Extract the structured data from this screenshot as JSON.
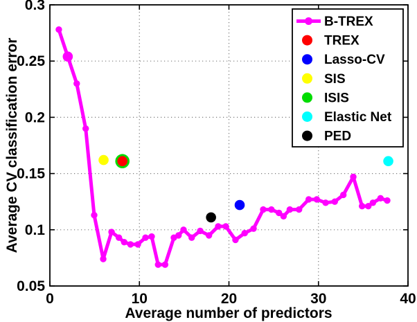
{
  "figure": {
    "background_color": "#FFFFFF",
    "axis_color": "#000000",
    "grid_color": "#7A7A7A"
  },
  "chart_data": {
    "type": "line",
    "title": "",
    "xlabel": "Average number of predictors",
    "ylabel": "Average CV classification error",
    "xlim": [
      0,
      40
    ],
    "ylim": [
      0.05,
      0.3
    ],
    "xticks": [
      0,
      10,
      20,
      30,
      40
    ],
    "xtick_labels": [
      "0",
      "10",
      "20",
      "30",
      "40"
    ],
    "yticks": [
      0.05,
      0.1,
      0.15,
      0.2,
      0.25,
      0.3
    ],
    "ytick_labels": [
      "0.05",
      "0.1",
      "0.15",
      "0.2",
      "0.25",
      "0.3"
    ],
    "grid": true,
    "grid_style": "dotted",
    "legend_position": "upper-right",
    "series": [
      {
        "name": "B-TREX",
        "type": "line-with-markers",
        "color": "#FF00FF",
        "marker": "circle",
        "line_width": 5,
        "marker_radius": 4.7,
        "emphasized_point_index": 1,
        "emphasized_marker_radius": 7.3,
        "x": [
          1,
          2,
          3,
          4,
          4.95,
          5.96,
          6.89,
          7.71,
          8.3,
          9.0,
          9.83,
          10.68,
          11.37,
          12.09,
          12.87,
          13.85,
          14.37,
          14.93,
          15.84,
          16.79,
          17.77,
          18.8,
          19.65,
          20.73,
          21.76,
          22.75,
          23.83,
          24.74,
          25.59,
          26.1,
          26.8,
          27.83,
          28.91,
          29.81,
          30.8,
          31.82,
          32.78,
          33.89,
          34.87,
          35.57,
          36.08,
          36.93,
          37.68
        ],
        "y": [
          0.278,
          0.254,
          0.23,
          0.19,
          0.113,
          0.074,
          0.098,
          0.093,
          0.089,
          0.087,
          0.087,
          0.093,
          0.094,
          0.069,
          0.069,
          0.093,
          0.095,
          0.1,
          0.093,
          0.099,
          0.095,
          0.103,
          0.103,
          0.091,
          0.097,
          0.101,
          0.118,
          0.118,
          0.115,
          0.112,
          0.118,
          0.118,
          0.127,
          0.127,
          0.124,
          0.125,
          0.131,
          0.147,
          0.121,
          0.121,
          0.124,
          0.128,
          0.126
        ]
      },
      {
        "name": "TREX",
        "type": "point",
        "color": "#FF0000",
        "marker_radius": 7.3,
        "x": [
          8.1
        ],
        "y": [
          0.161
        ]
      },
      {
        "name": "Lasso-CV",
        "type": "point",
        "color": "#0000FF",
        "marker_radius": 7.3,
        "x": [
          21.2
        ],
        "y": [
          0.122
        ]
      },
      {
        "name": "SIS",
        "type": "point",
        "color": "#FFFF00",
        "marker_radius": 7.3,
        "x": [
          6.0
        ],
        "y": [
          0.162
        ]
      },
      {
        "name": "ISIS",
        "type": "point",
        "color": "#00DC00",
        "marker_radius": 10.3,
        "x": [
          8.1
        ],
        "y": [
          0.161
        ]
      },
      {
        "name": "Elastic Net",
        "type": "point",
        "color": "#00FFFF",
        "marker_radius": 7.3,
        "x": [
          37.8
        ],
        "y": [
          0.161
        ]
      },
      {
        "name": "PED",
        "type": "point",
        "color": "#000000",
        "marker_radius": 7.3,
        "x": [
          18.0
        ],
        "y": [
          0.111
        ]
      }
    ]
  }
}
